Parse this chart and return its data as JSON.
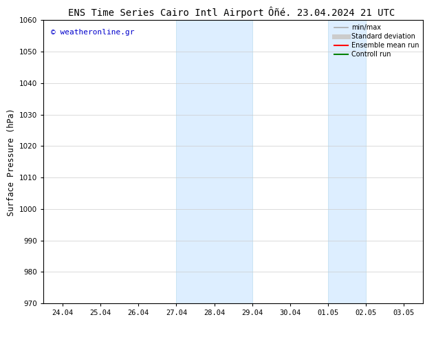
{
  "title_left": "ENS Time Series Cairo Intl Airport",
  "title_right": "Ôñé. 23.04.2024 21 UTC",
  "ylabel": "Surface Pressure (hPa)",
  "ylim": [
    970,
    1060
  ],
  "yticks": [
    970,
    980,
    990,
    1000,
    1010,
    1020,
    1030,
    1040,
    1050,
    1060
  ],
  "xtick_labels": [
    "24.04",
    "25.04",
    "26.04",
    "27.04",
    "28.04",
    "29.04",
    "30.04",
    "01.05",
    "02.05",
    "03.05"
  ],
  "shaded_bands": [
    {
      "xstart": 3,
      "xend": 5
    },
    {
      "xstart": 7,
      "xend": 8
    }
  ],
  "band_color": "#ddeeff",
  "band_edge_color": "#bbddee",
  "copyright_text": "© weatheronline.gr",
  "copyright_color": "#0000cc",
  "legend_entries": [
    {
      "label": "min/max",
      "color": "#aaaaaa",
      "lw": 1.2,
      "style": "solid"
    },
    {
      "label": "Standard deviation",
      "color": "#cccccc",
      "lw": 5,
      "style": "solid"
    },
    {
      "label": "Ensemble mean run",
      "color": "#ff0000",
      "lw": 1.5,
      "style": "solid"
    },
    {
      "label": "Controll run",
      "color": "#008000",
      "lw": 1.5,
      "style": "solid"
    }
  ],
  "bg_color": "#ffffff",
  "spine_color": "#000000",
  "grid_color": "#cccccc",
  "title_fontsize": 10,
  "tick_fontsize": 7.5,
  "ylabel_fontsize": 8.5
}
